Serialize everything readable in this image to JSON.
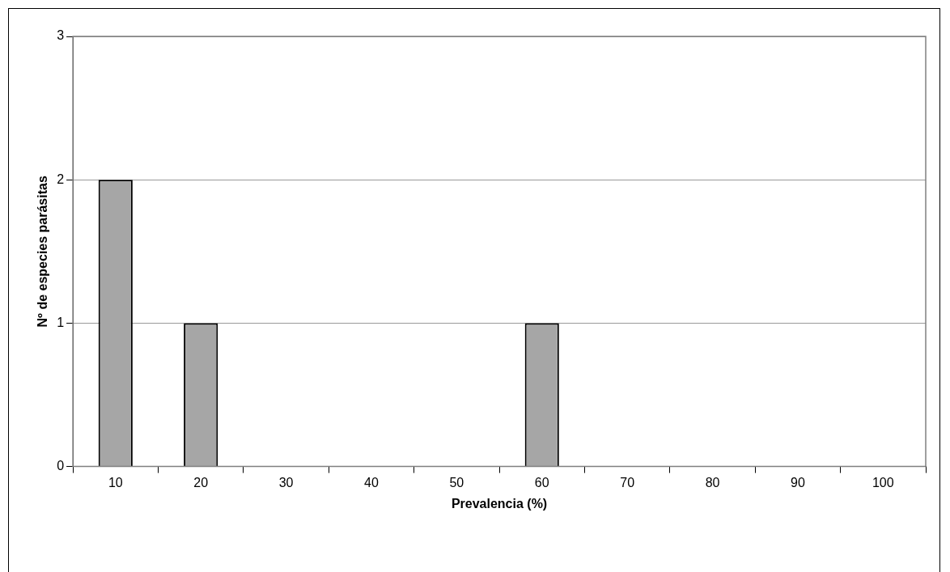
{
  "chart_data": {
    "type": "bar",
    "xlabel": "Prevalencia (%)",
    "ylabel": "Nº de especies parásitas",
    "categories": [
      "10",
      "20",
      "30",
      "40",
      "50",
      "60",
      "70",
      "80",
      "90",
      "100"
    ],
    "values": [
      2,
      1,
      0,
      0,
      0,
      1,
      0,
      0,
      0,
      0
    ],
    "color": "#a6a6a6",
    "ylim": [
      0,
      3
    ],
    "yticks": [
      0,
      1,
      2,
      3
    ],
    "grid": "y"
  }
}
